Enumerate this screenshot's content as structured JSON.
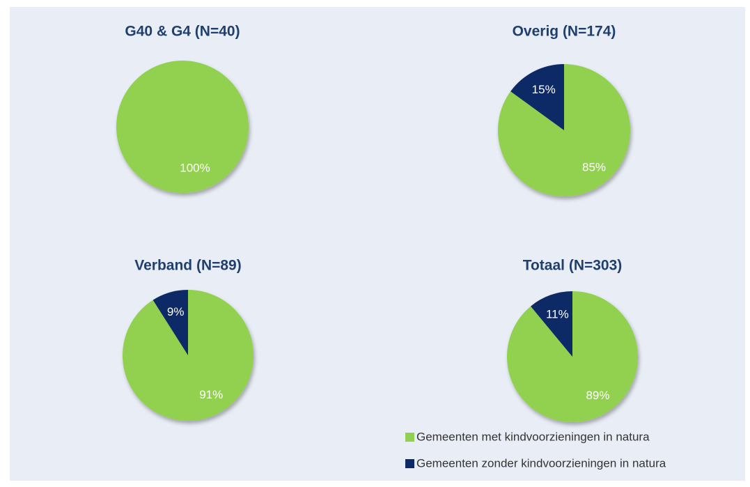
{
  "chart_data": [
    {
      "type": "pie",
      "title": "G40 & G4 (N=40)",
      "categories": [
        "Gemeenten met kindvoorzieningen in natura",
        "Gemeenten zonder kindvoorzieningen in natura"
      ],
      "values": [
        100,
        0
      ],
      "value_labels": [
        "100%",
        null
      ],
      "colors": [
        "#92d050",
        "#0e2a66"
      ]
    },
    {
      "type": "pie",
      "title": "Overig (N=174)",
      "categories": [
        "Gemeenten met kindvoorzieningen in natura",
        "Gemeenten zonder kindvoorzieningen in natura"
      ],
      "values": [
        85,
        15
      ],
      "value_labels": [
        "85%",
        "15%"
      ],
      "colors": [
        "#92d050",
        "#0e2a66"
      ]
    },
    {
      "type": "pie",
      "title": "Verband (N=89)",
      "categories": [
        "Gemeenten met kindvoorzieningen in natura",
        "Gemeenten zonder kindvoorzieningen in natura"
      ],
      "values": [
        91,
        9
      ],
      "value_labels": [
        "91%",
        "9%"
      ],
      "colors": [
        "#92d050",
        "#0e2a66"
      ]
    },
    {
      "type": "pie",
      "title": "Totaal (N=303)",
      "categories": [
        "Gemeenten met kindvoorzieningen in natura",
        "Gemeenten zonder kindvoorzieningen in natura"
      ],
      "values": [
        89,
        11
      ],
      "value_labels": [
        "89%",
        "11%"
      ],
      "colors": [
        "#92d050",
        "#0e2a66"
      ]
    }
  ]
}
